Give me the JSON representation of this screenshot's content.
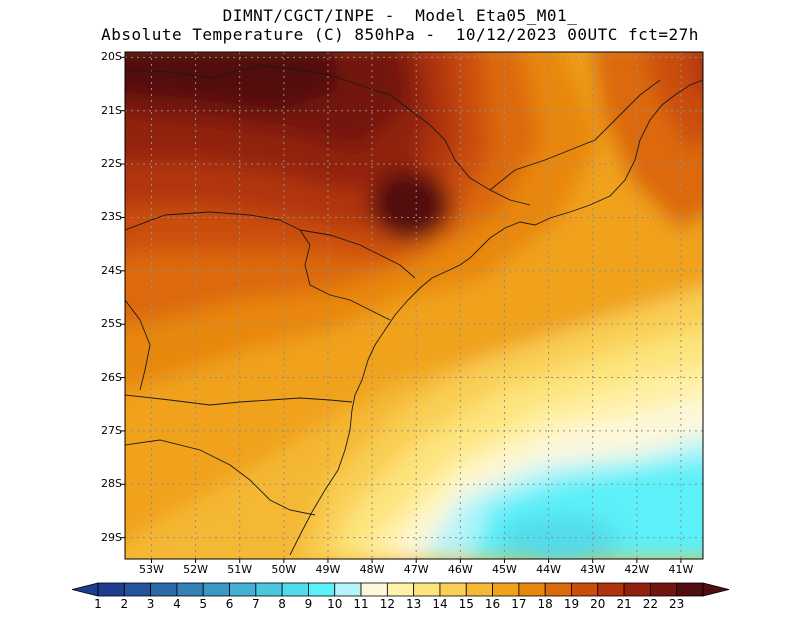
{
  "header": {
    "line1": "DIMNT/CGCT/INPE -  Model Eta05_M01_",
    "line2": "Absolute Temperature (C) 850hPa -  10/12/2023 00UTC fct=27h"
  },
  "map": {
    "lat_labels": [
      "20S",
      "21S",
      "22S",
      "23S",
      "24S",
      "25S",
      "26S",
      "27S",
      "28S",
      "29S"
    ],
    "lon_labels": [
      "53W",
      "52W",
      "51W",
      "50W",
      "49W",
      "48W",
      "47W",
      "46W",
      "45W",
      "44W",
      "43W",
      "42W",
      "41W"
    ],
    "lat_values": [
      -20,
      -21,
      -22,
      -23,
      -24,
      -25,
      -26,
      -27,
      -28,
      -29
    ],
    "lon_values": [
      -53,
      -52,
      -51,
      -50,
      -49,
      -48,
      -47,
      -46,
      -45,
      -44,
      -43,
      -42,
      -41
    ],
    "lat_range": [
      -29.4,
      -19.9
    ],
    "lon_range": [
      -53.6,
      -40.5
    ]
  },
  "colorbar": {
    "labels": [
      "1",
      "2",
      "3",
      "4",
      "5",
      "6",
      "7",
      "8",
      "9",
      "10",
      "11",
      "12",
      "13",
      "14",
      "15",
      "16",
      "17",
      "18",
      "19",
      "20",
      "21",
      "22",
      "23"
    ],
    "colors": [
      "#1f3d8f",
      "#24549c",
      "#2b6aa8",
      "#3381b6",
      "#3a98c4",
      "#42b0d2",
      "#4ac7de",
      "#52dcea",
      "#5cf0f8",
      "#b4f4fa",
      "#fdf8dc",
      "#fff1a8",
      "#fde47c",
      "#f9cf55",
      "#f5b835",
      "#f0a21a",
      "#e88710",
      "#dc690c",
      "#ca4d0c",
      "#b1340e",
      "#92200f",
      "#731510",
      "#520d10"
    ]
  }
}
